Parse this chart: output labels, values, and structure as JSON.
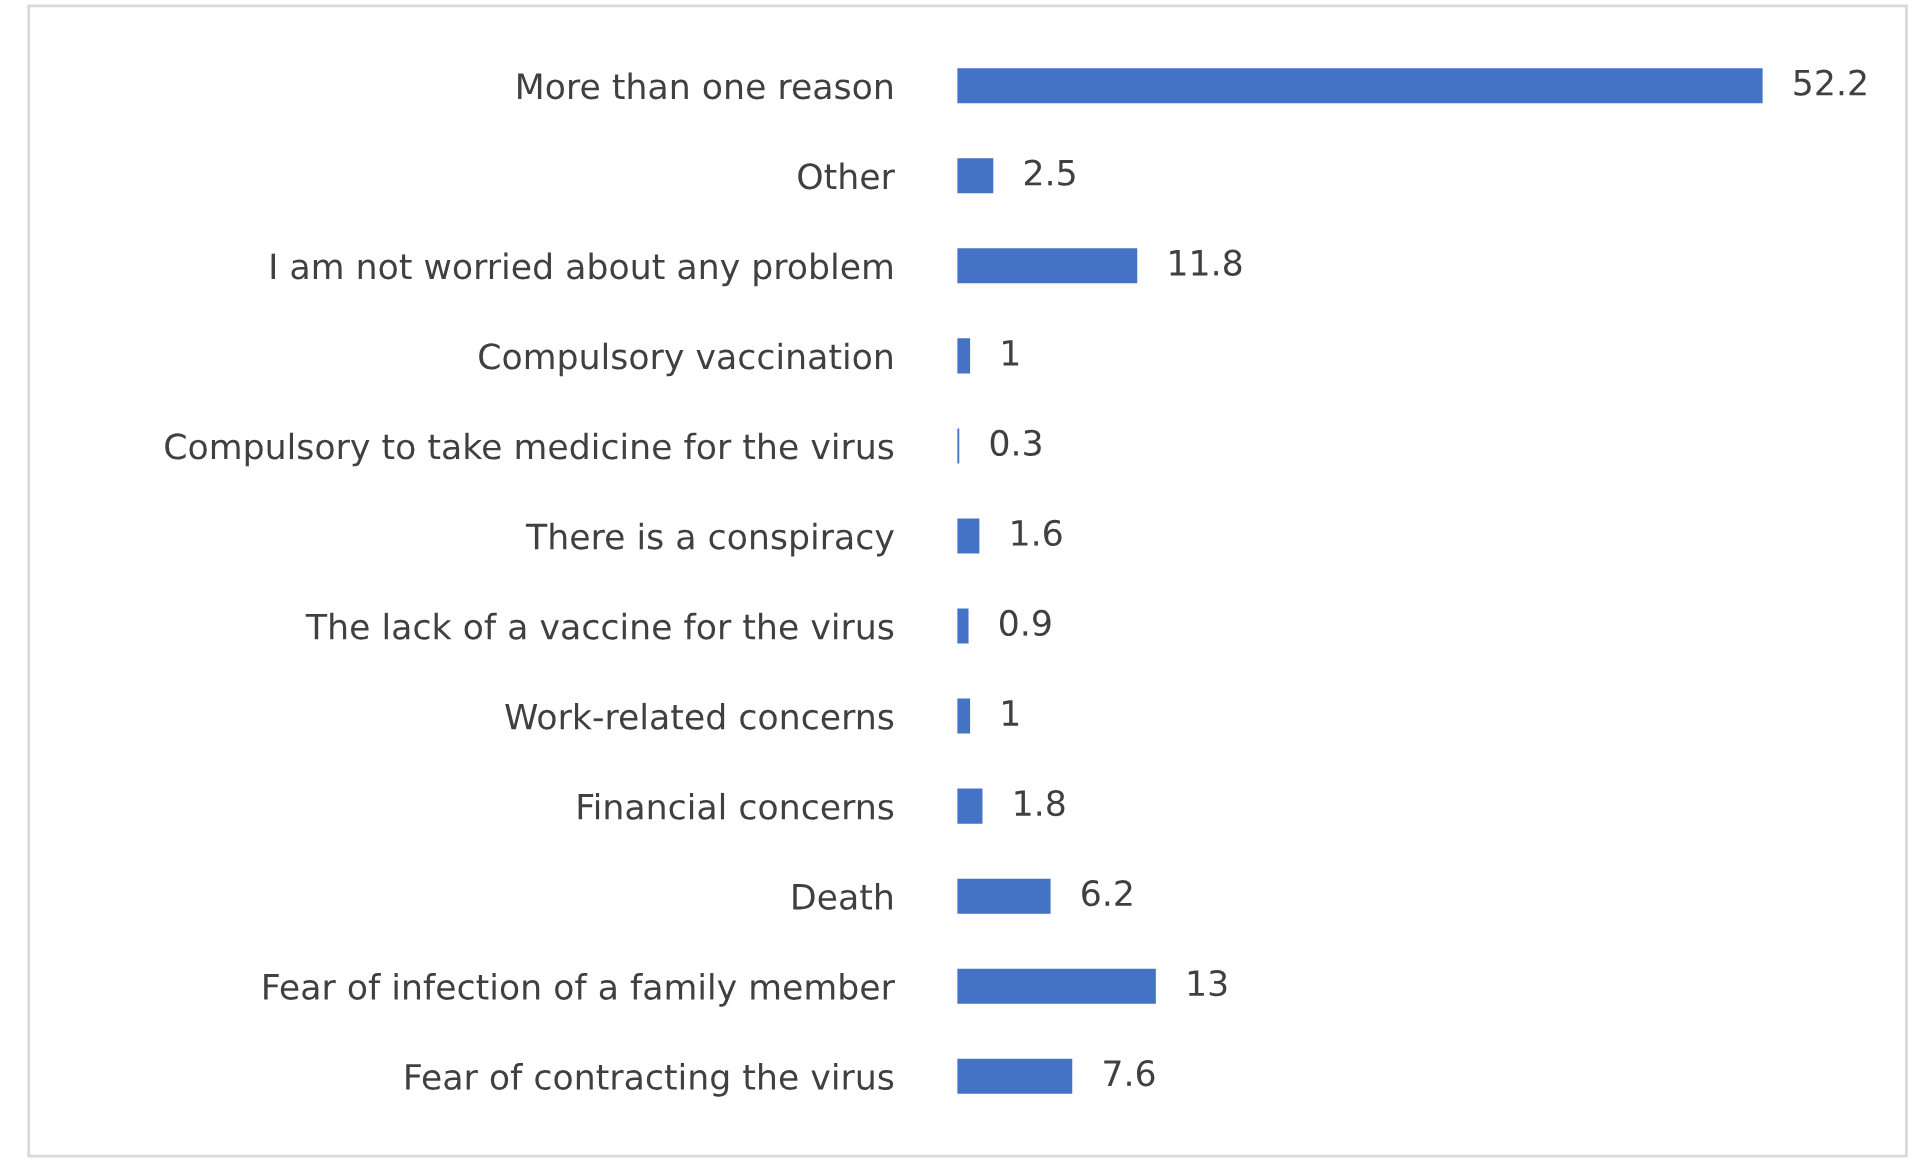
{
  "chart_data": {
    "type": "bar",
    "orientation": "horizontal",
    "data_labels": true,
    "color": "#4472c4",
    "categories": [
      "More than one reason",
      "Other",
      "I am not worried about any problem",
      "Compulsory vaccination",
      "Compulsory to take medicine for the virus",
      "There is a conspiracy",
      "The lack of a vaccine for the virus",
      "Work-related concerns",
      "Financial concerns",
      "Death",
      "Fear of infection of a family member",
      "Fear of contracting the virus"
    ],
    "values": [
      52.2,
      2.5,
      11.8,
      1,
      0.3,
      1.6,
      0.9,
      1,
      1.8,
      6.2,
      13,
      7.6
    ]
  }
}
